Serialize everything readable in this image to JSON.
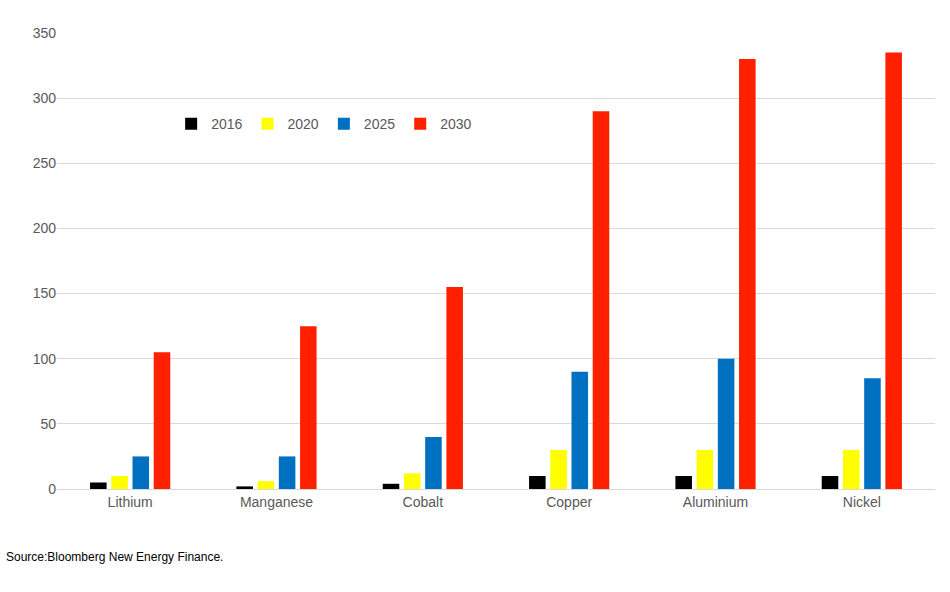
{
  "chart_data": {
    "type": "bar",
    "categories": [
      "Lithium",
      "Manganese",
      "Cobalt",
      "Copper",
      "Aluminium",
      "Nickel"
    ],
    "series": [
      {
        "name": "2016",
        "color": "#000000",
        "values": [
          5,
          2,
          4,
          10,
          10,
          10
        ]
      },
      {
        "name": "2020",
        "color": "#FFFF00",
        "values": [
          10,
          6,
          12,
          30,
          30,
          30
        ]
      },
      {
        "name": "2025",
        "color": "#0070C0",
        "values": [
          25,
          25,
          40,
          90,
          100,
          85
        ]
      },
      {
        "name": "2030",
        "color": "#FF2000",
        "values": [
          105,
          125,
          155,
          290,
          330,
          335
        ]
      }
    ],
    "ylim": [
      0,
      350
    ],
    "yticks": [
      0,
      50,
      100,
      150,
      200,
      250,
      300,
      350
    ],
    "grid": true,
    "legend": "top-left",
    "annotations": [
      "Source:Bloomberg New Energy Finance."
    ]
  }
}
